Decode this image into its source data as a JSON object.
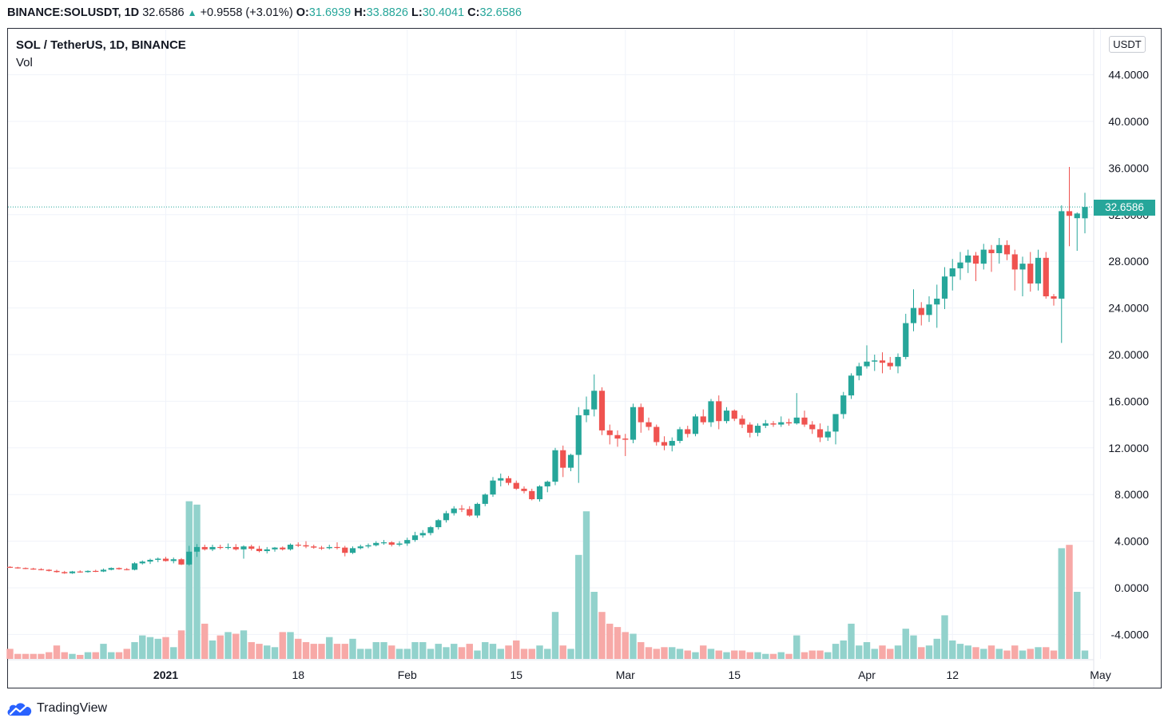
{
  "header": {
    "symbol": "BINANCE:SOLUSDT, 1D",
    "last": "32.6586",
    "change": "+0.9558 (+3.01%)",
    "o_label": "O:",
    "o": "31.6939",
    "h_label": "H:",
    "h": "33.8826",
    "l_label": "L:",
    "l": "30.4041",
    "c_label": "C:",
    "c": "32.6586"
  },
  "legend": {
    "title": "SOL / TetherUS, 1D, BINANCE",
    "vol": "Vol"
  },
  "axis": {
    "unit": "USDT",
    "last_price_tag": "32.6586"
  },
  "brand": {
    "name": "TradingView"
  },
  "colors": {
    "up": "#26a69a",
    "down": "#ef5350",
    "vol_up": "#92d2cc",
    "vol_down": "#f7a9a7"
  },
  "chart_data": {
    "type": "candlestick",
    "title": "SOL / TetherUS, 1D, BINANCE",
    "y_ticks": [
      "44.0000",
      "40.0000",
      "36.0000",
      "32.0000",
      "28.0000",
      "24.0000",
      "20.0000",
      "16.0000",
      "12.0000",
      "8.0000",
      "4.0000",
      "0.0000",
      "-4.0000"
    ],
    "x_ticks": [
      {
        "label": "2021",
        "bold": true,
        "day": 20
      },
      {
        "label": "18",
        "day": 37
      },
      {
        "label": "Feb",
        "day": 51
      },
      {
        "label": "15",
        "day": 65
      },
      {
        "label": "Mar",
        "day": 79
      },
      {
        "label": "15",
        "day": 93
      },
      {
        "label": "Apr",
        "day": 110
      },
      {
        "label": "12",
        "day": 121
      },
      {
        "label": "May",
        "day": 140
      }
    ],
    "ylim": [
      -6,
      48
    ],
    "last_price": 32.6586,
    "start_date": "2020-12-12",
    "candles": [
      [
        1.8,
        1.85,
        1.7,
        1.75,
        3
      ],
      [
        1.75,
        1.8,
        1.65,
        1.7,
        1.5
      ],
      [
        1.7,
        1.75,
        1.6,
        1.65,
        1.5
      ],
      [
        1.65,
        1.72,
        1.55,
        1.6,
        1.5
      ],
      [
        1.6,
        1.68,
        1.5,
        1.55,
        1.5
      ],
      [
        1.55,
        1.6,
        1.4,
        1.45,
        2
      ],
      [
        1.45,
        1.55,
        1.3,
        1.35,
        4
      ],
      [
        1.35,
        1.45,
        1.2,
        1.25,
        2
      ],
      [
        1.25,
        1.45,
        1.2,
        1.4,
        1.5
      ],
      [
        1.4,
        1.5,
        1.3,
        1.35,
        1.2
      ],
      [
        1.35,
        1.5,
        1.3,
        1.45,
        2
      ],
      [
        1.45,
        1.55,
        1.35,
        1.4,
        2
      ],
      [
        1.4,
        1.65,
        1.35,
        1.55,
        4.5
      ],
      [
        1.55,
        1.75,
        1.5,
        1.7,
        2
      ],
      [
        1.7,
        1.75,
        1.55,
        1.6,
        2
      ],
      [
        1.6,
        1.7,
        1.5,
        1.55,
        3
      ],
      [
        1.55,
        2.2,
        1.5,
        2.1,
        5
      ],
      [
        2.1,
        2.35,
        2.0,
        2.25,
        7
      ],
      [
        2.25,
        2.5,
        2.05,
        2.4,
        6.5
      ],
      [
        2.4,
        2.6,
        2.2,
        2.5,
        6
      ],
      [
        2.5,
        2.65,
        2.25,
        2.3,
        6.5
      ],
      [
        2.3,
        2.6,
        2.1,
        2.45,
        3.5
      ],
      [
        2.45,
        2.55,
        1.95,
        2.0,
        8.5
      ],
      [
        2.0,
        3.6,
        1.9,
        3.1,
        47
      ],
      [
        3.1,
        3.75,
        2.65,
        3.5,
        46
      ],
      [
        3.5,
        3.7,
        3.2,
        3.3,
        10.5
      ],
      [
        3.3,
        3.7,
        3.15,
        3.5,
        5.5
      ],
      [
        3.5,
        3.7,
        3.3,
        3.45,
        7
      ],
      [
        3.45,
        3.8,
        3.3,
        3.5,
        8
      ],
      [
        3.5,
        3.75,
        3.2,
        3.3,
        7.5
      ],
      [
        3.3,
        3.65,
        2.5,
        3.55,
        8.5
      ],
      [
        3.55,
        3.7,
        3.2,
        3.35,
        5
      ],
      [
        3.35,
        3.6,
        3.05,
        3.15,
        4.5
      ],
      [
        3.15,
        3.5,
        2.95,
        3.3,
        4
      ],
      [
        3.3,
        3.5,
        3.1,
        3.45,
        3.5
      ],
      [
        3.45,
        3.55,
        3.2,
        3.3,
        8
      ],
      [
        3.3,
        3.8,
        3.2,
        3.7,
        8
      ],
      [
        3.7,
        3.9,
        3.5,
        3.65,
        6
      ],
      [
        3.65,
        4.0,
        3.4,
        3.55,
        5
      ],
      [
        3.55,
        3.7,
        3.35,
        3.45,
        4.5
      ],
      [
        3.45,
        3.6,
        3.25,
        3.4,
        4.5
      ],
      [
        3.4,
        3.7,
        3.3,
        3.5,
        6.5
      ],
      [
        3.5,
        3.9,
        3.3,
        3.45,
        4.5
      ],
      [
        3.45,
        3.6,
        2.7,
        3.0,
        4.5
      ],
      [
        3.0,
        3.55,
        2.9,
        3.4,
        6
      ],
      [
        3.4,
        3.7,
        3.3,
        3.55,
        3
      ],
      [
        3.55,
        3.8,
        3.4,
        3.65,
        3
      ],
      [
        3.65,
        4.0,
        3.55,
        3.85,
        5
      ],
      [
        3.85,
        4.1,
        3.7,
        3.9,
        5
      ],
      [
        3.9,
        4.0,
        3.55,
        3.7,
        4
      ],
      [
        3.7,
        4.0,
        3.55,
        3.8,
        3
      ],
      [
        3.8,
        4.3,
        3.6,
        4.1,
        3
      ],
      [
        4.1,
        4.8,
        3.95,
        4.5,
        5
      ],
      [
        4.5,
        4.95,
        4.3,
        4.7,
        5
      ],
      [
        4.7,
        5.3,
        4.5,
        5.2,
        3
      ],
      [
        5.2,
        5.9,
        5.0,
        5.8,
        4.5
      ],
      [
        5.8,
        6.6,
        5.6,
        6.4,
        3.5
      ],
      [
        6.4,
        7.0,
        6.2,
        6.8,
        4.5
      ],
      [
        6.8,
        7.1,
        6.5,
        6.75,
        3.5
      ],
      [
        6.75,
        7.0,
        6.1,
        6.2,
        4.5
      ],
      [
        6.2,
        7.3,
        6.0,
        7.2,
        2.5
      ],
      [
        7.2,
        8.1,
        7.0,
        8.0,
        5
      ],
      [
        8.0,
        9.5,
        7.8,
        9.2,
        4.5
      ],
      [
        9.2,
        9.8,
        8.7,
        9.4,
        3
      ],
      [
        9.4,
        9.6,
        8.8,
        9.0,
        4
      ],
      [
        9.0,
        9.2,
        8.4,
        8.5,
        5.5
      ],
      [
        8.5,
        8.7,
        8.1,
        8.3,
        3
      ],
      [
        8.3,
        8.5,
        7.5,
        7.6,
        3
      ],
      [
        7.6,
        8.8,
        7.4,
        8.7,
        4
      ],
      [
        8.7,
        9.2,
        8.2,
        9.1,
        3
      ],
      [
        9.1,
        12.0,
        8.8,
        11.8,
        14
      ],
      [
        11.8,
        12.2,
        9.5,
        10.3,
        4
      ],
      [
        10.3,
        11.5,
        10.0,
        11.4,
        3
      ],
      [
        11.4,
        15.5,
        9.0,
        14.8,
        31
      ],
      [
        14.8,
        16.4,
        14.2,
        15.3,
        44
      ],
      [
        15.3,
        18.3,
        14.7,
        16.9,
        20
      ],
      [
        16.9,
        17.2,
        13.1,
        13.5,
        14
      ],
      [
        13.5,
        14.0,
        12.3,
        13.1,
        10.5
      ],
      [
        13.1,
        13.5,
        12.1,
        12.8,
        9.5
      ],
      [
        12.8,
        13.2,
        11.3,
        12.7,
        8
      ],
      [
        12.7,
        15.8,
        12.4,
        15.5,
        7.5
      ],
      [
        15.5,
        15.8,
        13.3,
        14.2,
        5
      ],
      [
        14.2,
        14.6,
        13.5,
        13.8,
        3.5
      ],
      [
        13.8,
        14.0,
        12.2,
        12.5,
        3
      ],
      [
        12.5,
        13.0,
        11.8,
        12.2,
        3.5
      ],
      [
        12.2,
        12.9,
        11.7,
        12.6,
        3.5
      ],
      [
        12.6,
        13.8,
        12.4,
        13.6,
        3
      ],
      [
        13.6,
        13.9,
        12.9,
        13.2,
        2.5
      ],
      [
        13.2,
        14.9,
        13.0,
        14.7,
        2
      ],
      [
        14.7,
        15.3,
        14.0,
        14.2,
        4
      ],
      [
        14.2,
        16.2,
        13.8,
        16.0,
        3
      ],
      [
        16.0,
        16.5,
        13.6,
        14.3,
        2.5
      ],
      [
        14.3,
        15.5,
        14.1,
        15.2,
        2
      ],
      [
        15.2,
        15.3,
        14.3,
        14.5,
        2.5
      ],
      [
        14.5,
        14.8,
        13.7,
        14.0,
        2.5
      ],
      [
        14.0,
        14.2,
        12.9,
        13.3,
        2
      ],
      [
        13.3,
        14.1,
        13.0,
        13.9,
        2
      ],
      [
        13.9,
        14.4,
        13.7,
        14.1,
        1.5
      ],
      [
        14.1,
        14.3,
        13.8,
        14.0,
        1.5
      ],
      [
        14.0,
        14.7,
        13.8,
        14.2,
        2
      ],
      [
        14.2,
        14.5,
        13.9,
        14.1,
        1.5
      ],
      [
        14.1,
        16.7,
        14.0,
        14.6,
        7
      ],
      [
        14.6,
        15.2,
        13.8,
        14.0,
        2
      ],
      [
        14.0,
        14.3,
        13.2,
        13.6,
        2.5
      ],
      [
        13.6,
        14.1,
        12.5,
        12.9,
        2.5
      ],
      [
        12.9,
        13.9,
        12.6,
        13.4,
        2
      ],
      [
        13.4,
        14.7,
        12.3,
        14.9,
        4.5
      ],
      [
        14.9,
        16.8,
        14.5,
        16.5,
        5.5
      ],
      [
        16.5,
        18.4,
        16.2,
        18.2,
        10.5
      ],
      [
        18.2,
        19.3,
        17.8,
        19.0,
        4
      ],
      [
        19.0,
        20.8,
        18.8,
        19.4,
        5
      ],
      [
        19.4,
        20.0,
        18.6,
        19.5,
        3
      ],
      [
        19.5,
        20.2,
        18.4,
        19.3,
        4
      ],
      [
        19.3,
        19.8,
        18.7,
        19.0,
        3
      ],
      [
        19.0,
        20.1,
        18.4,
        19.8,
        4
      ],
      [
        19.8,
        23.5,
        19.6,
        22.7,
        9
      ],
      [
        22.7,
        25.6,
        22.0,
        24.0,
        7
      ],
      [
        24.0,
        24.5,
        22.5,
        23.4,
        3.5
      ],
      [
        23.4,
        25.0,
        22.8,
        24.3,
        4
      ],
      [
        24.3,
        26.0,
        22.3,
        24.8,
        6
      ],
      [
        24.8,
        27.5,
        23.9,
        26.7,
        13
      ],
      [
        26.7,
        28.2,
        25.5,
        27.4,
        5.5
      ],
      [
        27.4,
        28.8,
        26.4,
        27.9,
        4.5
      ],
      [
        27.9,
        29.0,
        27.0,
        28.5,
        4
      ],
      [
        28.5,
        28.8,
        26.3,
        27.8,
        3.5
      ],
      [
        27.8,
        29.5,
        27.3,
        29.0,
        3
      ],
      [
        29.0,
        29.4,
        27.1,
        28.7,
        4
      ],
      [
        28.7,
        30.0,
        27.8,
        29.4,
        3
      ],
      [
        29.4,
        29.8,
        28.1,
        28.6,
        2.5
      ],
      [
        28.6,
        29.0,
        25.5,
        27.3,
        4
      ],
      [
        27.3,
        28.4,
        25.0,
        27.8,
        2.5
      ],
      [
        27.8,
        28.8,
        25.4,
        26.1,
        3
      ],
      [
        26.1,
        29.0,
        25.5,
        28.3,
        3.5
      ],
      [
        28.3,
        28.8,
        24.8,
        25.0,
        3.5
      ],
      [
        25.0,
        25.2,
        24.2,
        24.8,
        2.5
      ],
      [
        24.8,
        32.8,
        21.0,
        32.3,
        33
      ],
      [
        32.3,
        36.1,
        29.3,
        31.9,
        34
      ],
      [
        31.7,
        32.2,
        28.9,
        32.1,
        20
      ],
      [
        31.69,
        33.88,
        30.4,
        32.66,
        2.5
      ]
    ]
  }
}
